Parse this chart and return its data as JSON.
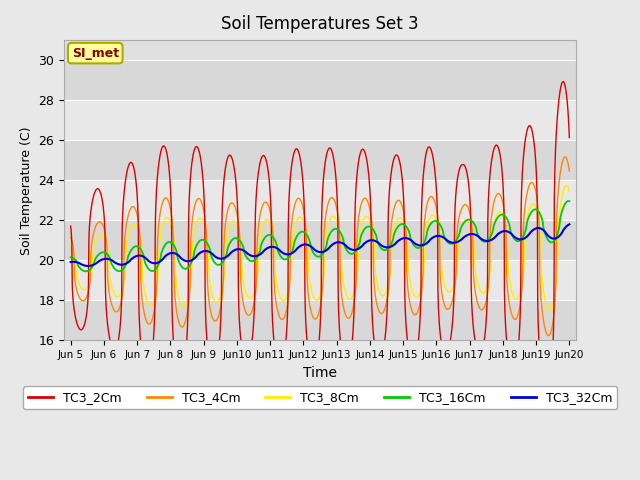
{
  "title": "Soil Temperatures Set 3",
  "xlabel": "Time",
  "ylabel": "Soil Temperature (C)",
  "ylim": [
    16,
    31
  ],
  "yticks": [
    16,
    18,
    20,
    22,
    24,
    26,
    28,
    30
  ],
  "annotation": "SI_met",
  "colors": {
    "TC3_2Cm": "#dd0000",
    "TC3_4Cm": "#ff8800",
    "TC3_8Cm": "#ffee00",
    "TC3_16Cm": "#00cc00",
    "TC3_32Cm": "#0000dd"
  },
  "legend_labels": [
    "TC3_2Cm",
    "TC3_4Cm",
    "TC3_8Cm",
    "TC3_16Cm",
    "TC3_32Cm"
  ],
  "start_day": 5,
  "end_day": 20,
  "points_per_day": 144,
  "fig_bg": "#e8e8e8",
  "plot_bg": "#e0e0e0",
  "band_colors": [
    "#d8d8d8",
    "#e8e8e8"
  ],
  "grid_color": "#ffffff"
}
